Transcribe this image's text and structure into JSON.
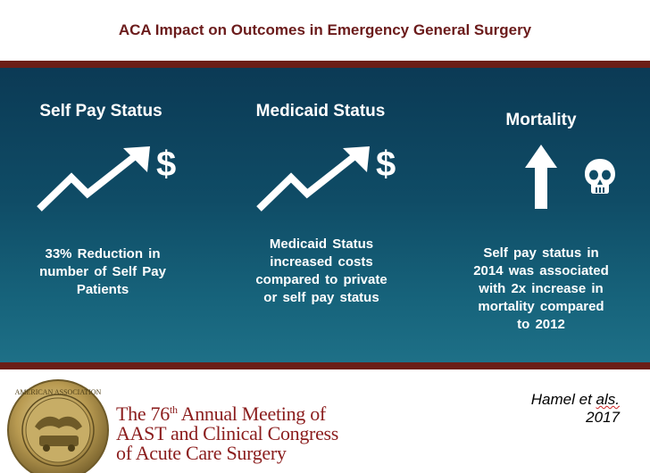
{
  "header": {
    "title": "ACA Impact on Outcomes in Emergency General Surgery"
  },
  "columns": [
    {
      "title": "Self Pay Status",
      "icon": "trending-up-arrow-icon",
      "symbol": "$",
      "lines": [
        "33% Reduction in",
        "number of Self Pay",
        "Patients"
      ]
    },
    {
      "title": "Medicaid Status",
      "icon": "trending-up-arrow-icon",
      "symbol": "$",
      "lines": [
        "Medicaid Status",
        "increased costs",
        "compared to private",
        "or self pay status"
      ]
    },
    {
      "title": "Mortality",
      "icon": "up-arrow-icon",
      "symbol_icon": "skull-icon",
      "lines": [
        "Self pay status in",
        "2014 was associated",
        "with 2x increase in",
        "mortality compared",
        "to 2012"
      ]
    }
  ],
  "footer": {
    "seal_icon": "american-association-seal",
    "seal_text": "THE AMERICAN ASSOCIATION FOR THE SURGERY OF TRAUMA",
    "meeting_line1_pre": "The 76",
    "meeting_line1_sup": "th",
    "meeting_line1_post": " Annual Meeting of",
    "meeting_line2": "AAST and Clinical Congress",
    "meeting_line3": "of Acute Care Surgery",
    "cite_name": "Hamel et ",
    "cite_als": "als.",
    "cite_year": "2017"
  },
  "colors": {
    "accent_dark_red": "#6b1e16",
    "title_red": "#6b1b1b",
    "panel_top": "#0b3a55",
    "panel_bottom": "#1e7087"
  }
}
